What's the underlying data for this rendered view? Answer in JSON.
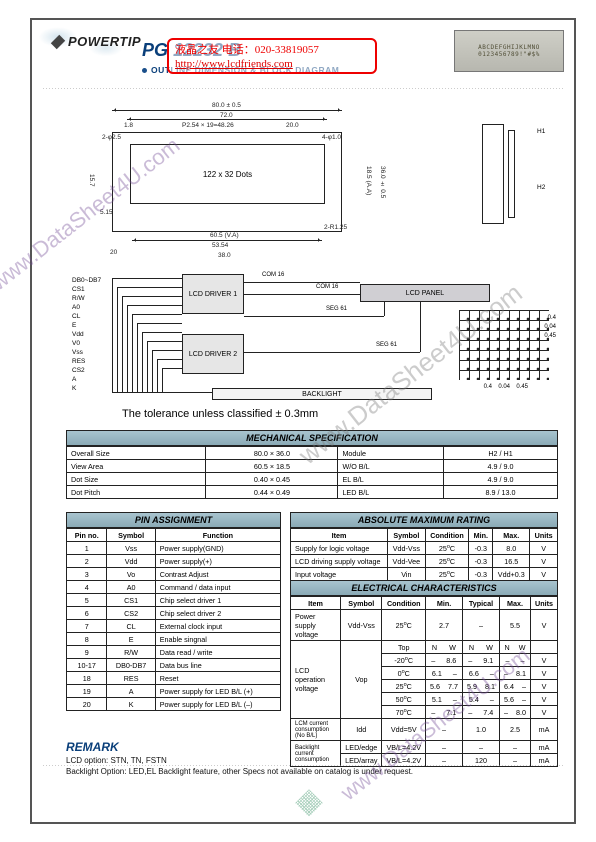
{
  "brand": "POWERTIP",
  "part_number": "PG 12232 B",
  "subtitle": "OUTLINE  DIMENSION & BLOCK DIAGRAM",
  "lcd_photo": {
    "line1": "ABCDEFGHIJKLMNO",
    "line2": "0123456789!\"#$%"
  },
  "vendor": {
    "line1": "液晶之友  电话：020-33819057",
    "line2_href": "http://www.lcdfriends.com",
    "line2_text": "http://www.lcdfriends.com"
  },
  "watermarks": {
    "w1": "www.DataSheet4U.com",
    "w2": "www.DataSheet4U.com",
    "w3": "www.DataSheet4U.com"
  },
  "drawing": {
    "dot_label": "122 x 32 Dots",
    "dims": {
      "w_overall": "80.0 ± 0.5",
      "w_inner1": "72.0",
      "pitch": "P2.54 × 19=48.26",
      "seg20": "20.0",
      "d18": "1.8",
      "h_overall": "36.0 ± 0.5",
      "h_active": "18.5 (A.A)",
      "va_w": "60.5 (V.A)",
      "w53": "53.54",
      "w38": "38.0",
      "w20": "20",
      "h15": "15.7",
      "h5": "5.15",
      "hole": "2-φ2.5",
      "hole4": "4-φ1.0",
      "r125": "2-R1.25",
      "side_h1": "H1",
      "side_h2": "H2"
    },
    "chip_dims": {
      "a": "0.4",
      "b": "0.45",
      "c": "0.04",
      "d": "0.4",
      "e": "0.45"
    }
  },
  "block": {
    "signals": [
      "DB0~DB7",
      "CS1",
      "R/W",
      "A0",
      "CL",
      "E",
      "Vdd",
      "V0",
      "Vss",
      "RES",
      "CS2",
      "",
      "A",
      "K"
    ],
    "drv1": "LCD\nDRIVER 1",
    "drv2": "LCD\nDRIVER 2",
    "panel": "LCD  PANEL",
    "backlight": "BACKLIGHT",
    "com16a": "COM 16",
    "com16b": "COM 16",
    "seg61a": "SEG 61",
    "seg61b": "SEG 61"
  },
  "tolerance_note": "The  tolerance  unless  classified ± 0.3mm",
  "mech_spec": {
    "title": "MECHANICAL  SPECIFICATION",
    "rows": [
      [
        "Overall Size",
        "80.0 × 36.0",
        "Module",
        "H2 / H1"
      ],
      [
        "View Area",
        "60.5 × 18.5",
        "W/O  B/L",
        "4.9 / 9.0"
      ],
      [
        "Dot Size",
        "0.40 × 0.45",
        "EL B/L",
        "4.9 / 9.0"
      ],
      [
        "Dot Pitch",
        "0.44 × 0.49",
        "LED B/L",
        "8.9 / 13.0"
      ]
    ]
  },
  "pin": {
    "title": "PIN  ASSIGNMENT",
    "head": [
      "Pin no.",
      "Symbol",
      "Function"
    ],
    "rows": [
      [
        "1",
        "Vss",
        "Power supply(GND)"
      ],
      [
        "2",
        "Vdd",
        "Power supply(+)"
      ],
      [
        "3",
        "Vo",
        "Contrast Adjust"
      ],
      [
        "4",
        "A0",
        "Command / data input"
      ],
      [
        "5",
        "CS1",
        "Chip select driver 1"
      ],
      [
        "6",
        "CS2",
        "Chip select driver 2"
      ],
      [
        "7",
        "CL",
        "External clock input"
      ],
      [
        "8",
        "E",
        "Enable singnal"
      ],
      [
        "9",
        "R/W",
        "Data read / write"
      ],
      [
        "10-17",
        "DB0-DB7",
        "Data bus line"
      ],
      [
        "18",
        "RES",
        "Reset"
      ],
      [
        "19",
        "A",
        "Power supply for LED B/L (+)"
      ],
      [
        "20",
        "K",
        "Power supply for LED B/L (–)"
      ]
    ]
  },
  "abs_max": {
    "title": "ABSOLUTE MAXIMUM RATING",
    "head": [
      "Item",
      "Symbol",
      "Condition",
      "Min.",
      "Max.",
      "Units"
    ],
    "rows": [
      [
        "Supply for logic voltage",
        "Vdd-Vss",
        "25°C",
        "-0.3",
        "8.0",
        "V"
      ],
      [
        "LCD driving supply voltage",
        "Vdd-Vee",
        "25°C",
        "-0.3",
        "16.5",
        "V"
      ],
      [
        "Input voltage",
        "Vin",
        "25°C",
        "-0.3",
        "Vdd+0.3",
        "V"
      ]
    ]
  },
  "elec": {
    "title": "ELECTRICAL CHARACTERISTICS",
    "head": [
      "Item",
      "Symbol",
      "Condition",
      "Min.",
      "Typical",
      "Max.",
      "Units"
    ],
    "psv": [
      "Power supply voltage",
      "Vdd-Vss",
      "25°C",
      "2.7",
      "–",
      "5.5",
      "V"
    ],
    "vop_label": "LCD operation voltage",
    "vop_symbol": "Vop",
    "vop_rows": [
      [
        "Top",
        "N",
        "W",
        "N",
        "W",
        "N",
        "W",
        ""
      ],
      [
        "-20°C",
        "–",
        "8.6",
        "–",
        "9.1",
        "–",
        "–",
        "V"
      ],
      [
        "0°C",
        "6.1",
        "–",
        "6.6",
        "–",
        "–",
        "8.1",
        "V"
      ],
      [
        "25°C",
        "5.6",
        "7.7",
        "5.9",
        "8.1",
        "6.4",
        "–",
        "V"
      ],
      [
        "50°C",
        "5.1",
        "–",
        "5.4",
        "–",
        "5.6",
        "–",
        "V"
      ],
      [
        "70°C",
        "–",
        "7.1",
        "–",
        "7.4",
        "–",
        "8.0",
        "V"
      ]
    ],
    "idd": [
      "LCM current consumption (No B/L)",
      "Idd",
      "Vdd=5V",
      "–",
      "1.0",
      "2.5",
      "mA"
    ],
    "backlight_label": "Backlight current consumption",
    "bl_rows": [
      [
        "LED/edge",
        "VB/L=4.2V",
        "–",
        "–",
        "–",
        "mA"
      ],
      [
        "LED/array",
        "VB/L=4.2V",
        "–",
        "120",
        "–",
        "mA"
      ]
    ]
  },
  "remark": {
    "title": "REMARK",
    "line1": "LCD option: STN, TN, FSTN",
    "line2": "Backlight Option:  LED,EL Backlight feature, other Specs not available on catalog is under request."
  }
}
